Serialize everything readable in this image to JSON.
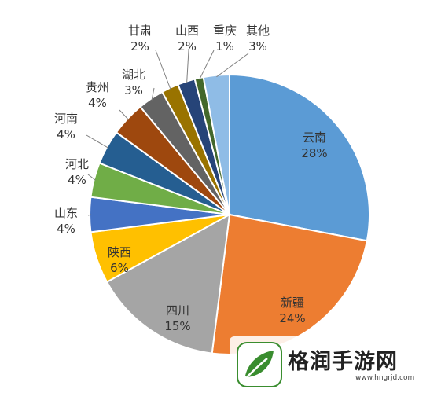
{
  "chart_data": {
    "type": "pie",
    "title": "",
    "slices": [
      {
        "label": "云南",
        "value": 28,
        "value_label": "28%",
        "color": "#5b9bd5"
      },
      {
        "label": "新疆",
        "value": 24,
        "value_label": "24%",
        "color": "#ed7d31"
      },
      {
        "label": "四川",
        "value": 15,
        "value_label": "15%",
        "color": "#a5a5a5"
      },
      {
        "label": "陕西",
        "value": 6,
        "value_label": "6%",
        "color": "#ffc000"
      },
      {
        "label": "山东",
        "value": 4,
        "value_label": "4%",
        "color": "#4472c4"
      },
      {
        "label": "河北",
        "value": 4,
        "value_label": "4%",
        "color": "#70ad47"
      },
      {
        "label": "河南",
        "value": 4,
        "value_label": "4%",
        "color": "#255e91"
      },
      {
        "label": "贵州",
        "value": 4,
        "value_label": "4%",
        "color": "#9e480e"
      },
      {
        "label": "湖北",
        "value": 3,
        "value_label": "3%",
        "color": "#636363"
      },
      {
        "label": "甘肃",
        "value": 2,
        "value_label": "2%",
        "color": "#997300"
      },
      {
        "label": "山西",
        "value": 2,
        "value_label": "2%",
        "color": "#264478"
      },
      {
        "label": "重庆",
        "value": 1,
        "value_label": "1%",
        "color": "#43682b"
      },
      {
        "label": "其他",
        "value": 3,
        "value_label": "3%",
        "color": "#8fbce6"
      }
    ]
  },
  "watermark": {
    "text": "格润手游网",
    "url": "www.hngrjd.com"
  }
}
